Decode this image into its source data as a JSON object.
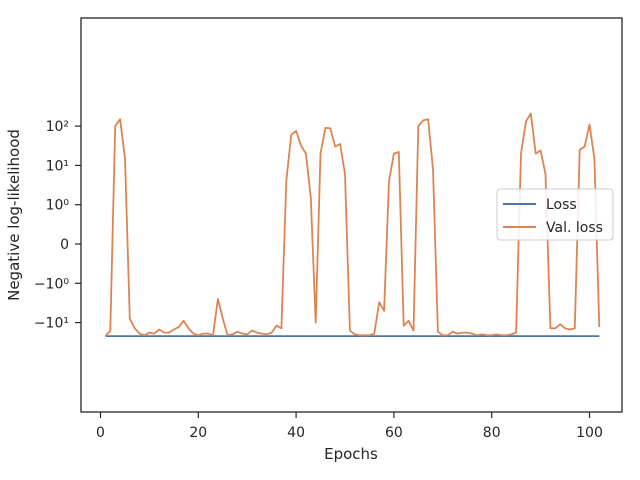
{
  "chart_data": {
    "type": "line",
    "xlabel": "Epochs",
    "ylabel": "Negative log-likelihood",
    "yscale": "symlog",
    "xlim": [
      -4,
      107
    ],
    "x_ticks": [
      0,
      20,
      40,
      60,
      80,
      100
    ],
    "y_ticks": [
      {
        "value": 100,
        "label": "10²"
      },
      {
        "value": 10,
        "label": "10¹"
      },
      {
        "value": 1,
        "label": "10⁰"
      },
      {
        "value": 0,
        "label": "0"
      },
      {
        "value": -1,
        "label": "−10⁰"
      },
      {
        "value": -10,
        "label": "−10¹"
      }
    ],
    "grid": false,
    "legend": {
      "position": "center-right",
      "entries": [
        "Loss",
        "Val. loss"
      ]
    },
    "colors": {
      "Loss": "#4c72b0",
      "Val. loss": "#dd8452"
    },
    "x": [
      1,
      2,
      3,
      4,
      5,
      6,
      7,
      8,
      9,
      10,
      11,
      12,
      13,
      14,
      15,
      16,
      17,
      18,
      19,
      20,
      21,
      22,
      23,
      24,
      25,
      26,
      27,
      28,
      29,
      30,
      31,
      32,
      33,
      34,
      35,
      36,
      37,
      38,
      39,
      40,
      41,
      42,
      43,
      44,
      45,
      46,
      47,
      48,
      49,
      50,
      51,
      52,
      53,
      54,
      55,
      56,
      57,
      58,
      59,
      60,
      61,
      62,
      63,
      64,
      65,
      66,
      67,
      68,
      69,
      70,
      71,
      72,
      73,
      74,
      75,
      76,
      77,
      78,
      79,
      80,
      81,
      82,
      83,
      84,
      85,
      86,
      87,
      88,
      89,
      90,
      91,
      92,
      93,
      94,
      95,
      96,
      97,
      98,
      99,
      100,
      101,
      102
    ],
    "series": [
      {
        "name": "Loss",
        "values": [
          -22,
          -22,
          -22,
          -22,
          -22,
          -22,
          -22,
          -22,
          -22,
          -22,
          -22,
          -22,
          -22,
          -22,
          -22,
          -22,
          -22,
          -22,
          -22,
          -22,
          -22,
          -22,
          -22,
          -22,
          -22,
          -22,
          -22,
          -22,
          -22,
          -22,
          -22,
          -22,
          -22,
          -22,
          -22,
          -22,
          -22,
          -22,
          -22,
          -22,
          -22,
          -22,
          -22,
          -22,
          -22,
          -22,
          -22,
          -22,
          -22,
          -22,
          -22,
          -22,
          -22,
          -22,
          -22,
          -22,
          -22,
          -22,
          -22,
          -22,
          -22,
          -22,
          -22,
          -22,
          -22,
          -22,
          -22,
          -22,
          -22,
          -22,
          -22,
          -22,
          -22,
          -22,
          -22,
          -22,
          -22,
          -22,
          -22,
          -22,
          -22,
          -22,
          -22,
          -22,
          -22,
          -22,
          -22,
          -22,
          -22,
          -22,
          -22,
          -22,
          -22,
          -22,
          -22,
          -22,
          -22,
          -22,
          -22,
          -22,
          -22,
          -22
        ]
      },
      {
        "name": "Val. loss",
        "values": [
          -22,
          -16,
          100,
          150,
          15,
          -8,
          -14,
          -19,
          -21,
          -18,
          -19,
          -15,
          -18,
          -18,
          -15,
          -13,
          -9,
          -14,
          -19,
          -21,
          -19,
          -19,
          -21,
          -2.5,
          -8,
          -21,
          -20,
          -17,
          -19,
          -20,
          -16,
          -18,
          -19,
          -20,
          -18,
          -12,
          -14,
          4,
          60,
          75,
          32,
          20,
          1.5,
          -10,
          20,
          90,
          88,
          30,
          35,
          6,
          -16,
          -20,
          -21,
          -21,
          -21,
          -19,
          -3,
          -5,
          4,
          20,
          22,
          -12,
          -9,
          -16,
          100,
          140,
          150,
          8,
          -17,
          -21,
          -21,
          -17,
          -19,
          -18,
          -18,
          -19,
          -21,
          -20,
          -21,
          -21,
          -20,
          -21,
          -21,
          -20,
          -18,
          20,
          130,
          210,
          20,
          24,
          6,
          -14,
          -14,
          -11,
          -14,
          -15,
          -14,
          25,
          30,
          110,
          15,
          -13
        ]
      }
    ]
  }
}
